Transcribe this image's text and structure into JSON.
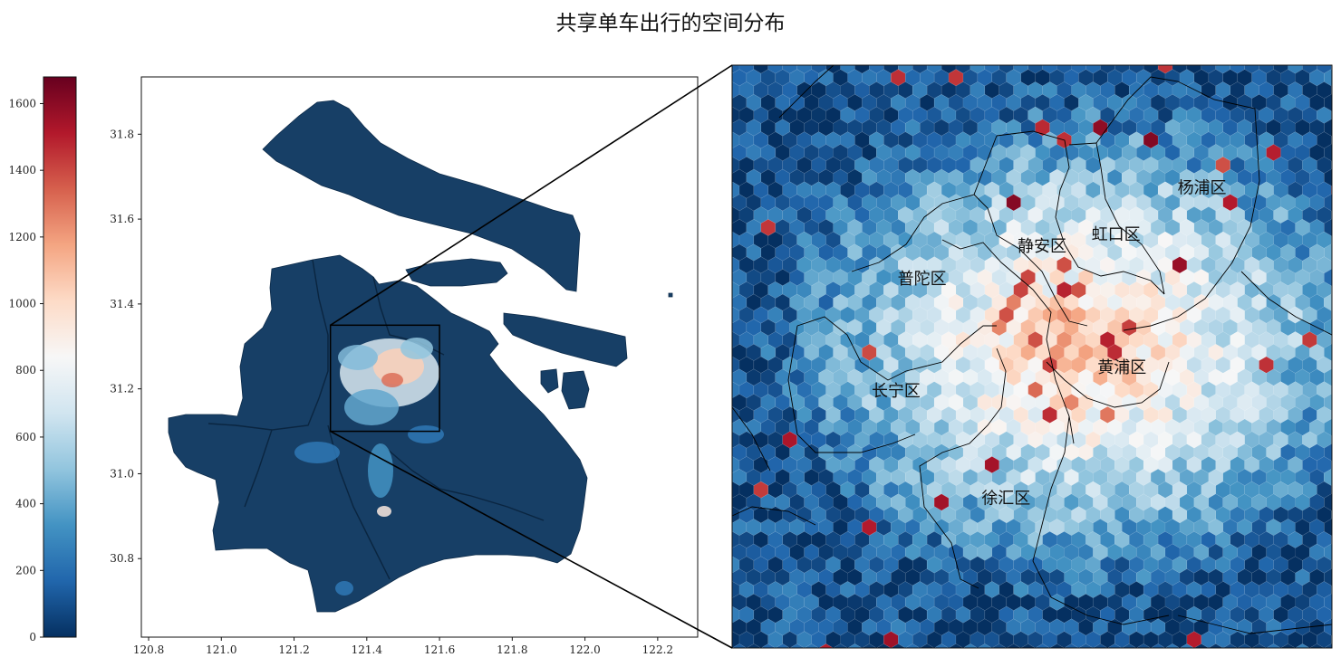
{
  "title": "共享单车出行的空间分布",
  "colorbar": {
    "ticks": [
      0,
      200,
      400,
      600,
      800,
      1000,
      1200,
      1400,
      1600
    ],
    "vmin": 0,
    "vmax": 1680,
    "colormap": [
      "#053061",
      "#2166ac",
      "#4393c3",
      "#92c5de",
      "#d1e5f0",
      "#f7f7f7",
      "#fddbc7",
      "#f4a582",
      "#d6604d",
      "#b2182b",
      "#67001f"
    ]
  },
  "map": {
    "x_ticks": [
      "120.8",
      "121.0",
      "121.2",
      "121.4",
      "121.6",
      "121.8",
      "122.0",
      "122.2"
    ],
    "y_ticks": [
      "31.8",
      "31.6",
      "31.4",
      "31.2",
      "31.0",
      "30.8"
    ],
    "x_range": [
      120.78,
      122.31
    ],
    "y_range": [
      30.615,
      31.935
    ],
    "zoom_box": {
      "lon": [
        121.3,
        121.6
      ],
      "lat": [
        31.1,
        31.35
      ]
    },
    "land_color": "#173f66",
    "hexbin_metric": "count"
  },
  "inset": {
    "districts": [
      {
        "name": "杨浦区",
        "lon": 121.535,
        "lat": 31.295
      },
      {
        "name": "虹口区",
        "lon": 121.492,
        "lat": 31.275
      },
      {
        "name": "静安区",
        "lon": 121.455,
        "lat": 31.27
      },
      {
        "name": "普陀区",
        "lon": 121.395,
        "lat": 31.256
      },
      {
        "name": "黄浦区",
        "lon": 121.495,
        "lat": 31.218
      },
      {
        "name": "长宁区",
        "lon": 121.382,
        "lat": 31.208
      },
      {
        "name": "徐汇区",
        "lon": 121.437,
        "lat": 31.162
      }
    ]
  }
}
